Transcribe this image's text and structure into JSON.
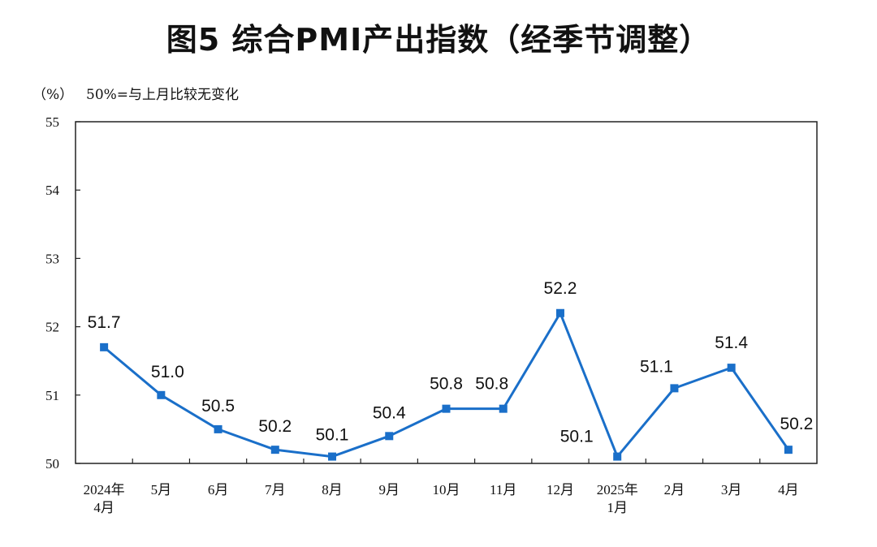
{
  "title": "图5  综合PMI产出指数（经季节调整）",
  "unit_label": "（%）",
  "note": "50%=与上月比较无变化",
  "chart_data": {
    "type": "line",
    "title": "图5  综合PMI产出指数（经季节调整）",
    "xlabel": "",
    "ylabel": "（%）",
    "ylim": [
      50,
      55
    ],
    "yticks": [
      "50",
      "51",
      "52",
      "53",
      "54",
      "55"
    ],
    "categories": [
      [
        "2024年",
        "4月"
      ],
      [
        "5月"
      ],
      [
        "6月"
      ],
      [
        "7月"
      ],
      [
        "8月"
      ],
      [
        "9月"
      ],
      [
        "10月"
      ],
      [
        "11月"
      ],
      [
        "12月"
      ],
      [
        "2025年",
        "1月"
      ],
      [
        "2月"
      ],
      [
        "3月"
      ],
      [
        "4月"
      ]
    ],
    "series": [
      {
        "values": [
          51.7,
          51.0,
          50.5,
          50.2,
          50.1,
          50.4,
          50.8,
          50.8,
          52.2,
          50.1,
          51.1,
          51.4,
          50.2
        ],
        "labels": [
          "51.7",
          "51.0",
          "50.5",
          "50.2",
          "50.1",
          "50.4",
          "50.8",
          "50.8",
          "52.2",
          "50.1",
          "51.1",
          "51.4",
          "50.2"
        ],
        "color": "#1a6fc9"
      }
    ],
    "grid": false,
    "legend": "none"
  }
}
